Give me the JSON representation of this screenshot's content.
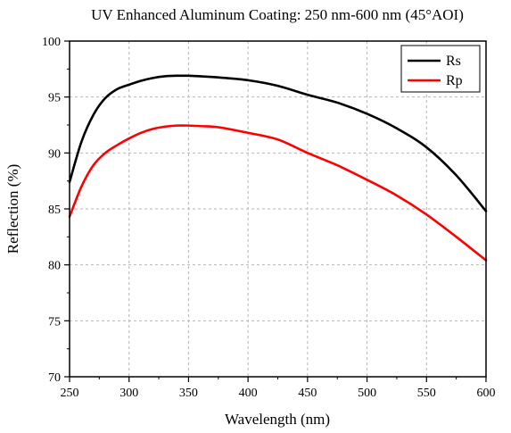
{
  "chart_data": {
    "type": "line",
    "title": "UV Enhanced Aluminum Coating: 250 nm-600 nm (45°AOI)",
    "xlabel": "Wavelength (nm)",
    "ylabel": "Reflection (%)",
    "xlim": [
      250,
      600
    ],
    "ylim": [
      70,
      100
    ],
    "xticks": [
      250,
      300,
      350,
      400,
      450,
      500,
      550,
      600
    ],
    "yticks": [
      70,
      75,
      80,
      85,
      90,
      95,
      100
    ],
    "grid": true,
    "legend_position": "top-right",
    "series": [
      {
        "name": "Rs",
        "color": "#000000",
        "x": [
          250,
          260,
          270,
          280,
          290,
          300,
          310,
          320,
          330,
          340,
          350,
          360,
          375,
          400,
          425,
          450,
          475,
          500,
          525,
          550,
          575,
          600
        ],
        "y": [
          87.4,
          91.0,
          93.4,
          94.9,
          95.7,
          96.1,
          96.45,
          96.7,
          96.85,
          96.9,
          96.9,
          96.85,
          96.75,
          96.5,
          96.0,
          95.2,
          94.5,
          93.5,
          92.2,
          90.5,
          88.0,
          84.8
        ]
      },
      {
        "name": "Rp",
        "color": "#ff0000",
        "x": [
          250,
          260,
          270,
          280,
          290,
          300,
          310,
          320,
          330,
          340,
          350,
          360,
          375,
          400,
          425,
          450,
          475,
          500,
          525,
          550,
          575,
          600
        ],
        "y": [
          84.3,
          87.0,
          88.9,
          90.0,
          90.7,
          91.3,
          91.8,
          92.15,
          92.35,
          92.45,
          92.45,
          92.4,
          92.3,
          91.8,
          91.2,
          90.0,
          88.9,
          87.6,
          86.2,
          84.5,
          82.5,
          80.4
        ]
      }
    ]
  }
}
